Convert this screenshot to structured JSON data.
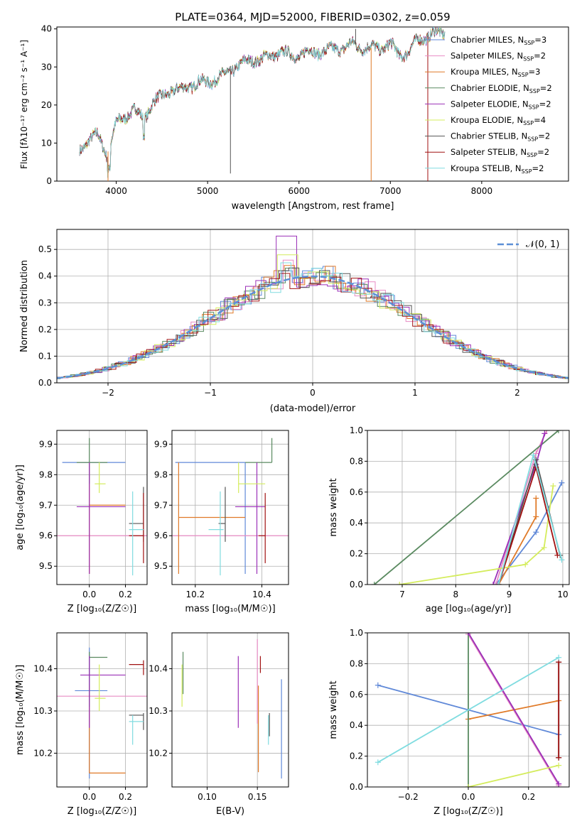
{
  "colors": {
    "chabrier_miles": "#6089d8",
    "salpeter_miles": "#e88bc4",
    "kroupa_miles": "#e07a28",
    "chabrier_elodie": "#5a8a60",
    "salpeter_elodie": "#9b30b8",
    "kroupa_elodie": "#d4ec5c",
    "chabrier_stelib": "#555555",
    "salpeter_stelib": "#a01010",
    "kroupa_stelib": "#80dce0",
    "gaussian": "#5b8fd6"
  },
  "chart_data": [
    {
      "id": "spectrum",
      "type": "line",
      "title": "PLATE=0364, MJD=52000, FIBERID=0302, z=0.059",
      "xlabel": "wavelength [Angstrom, rest frame]",
      "ylabel": "Flux [fλ10⁻¹⁷ erg cm⁻² s⁻¹ A⁻¹]",
      "xlim": [
        3350,
        8950
      ],
      "ylim": [
        0,
        40.5
      ],
      "xticks": [
        "4000",
        "5000",
        "6000",
        "7000",
        "8000"
      ],
      "yticks": [
        "0",
        "10",
        "20",
        "30",
        "40"
      ],
      "grid": false,
      "legend_position": "top-right",
      "x": [
        3600,
        3700,
        3800,
        3900,
        4000,
        4100,
        4200,
        4300,
        4400,
        4500,
        4600,
        4700,
        4800,
        4900,
        5000,
        5100,
        5200,
        5300,
        5400,
        5500,
        5600,
        5700,
        5800,
        5900,
        6000,
        6100,
        6200,
        6300,
        6400,
        6500,
        6600,
        6700,
        6800,
        6900,
        7000,
        7100,
        7200,
        7300,
        7400,
        7500
      ],
      "y": [
        8,
        11,
        12,
        7,
        15,
        17,
        19,
        16,
        21,
        22,
        24,
        24,
        25,
        26,
        26,
        27,
        28,
        30,
        31,
        32,
        32,
        33,
        34,
        33,
        33,
        34,
        34,
        34,
        35,
        35,
        36,
        35,
        35,
        35,
        36,
        33,
        34,
        37,
        38,
        39
      ],
      "series": [
        {
          "name": "Chabrier MILES, N_SSP=3",
          "color_key": "chabrier_miles"
        },
        {
          "name": "Salpeter MILES, N_SSP=2",
          "color_key": "salpeter_miles"
        },
        {
          "name": "Kroupa MILES, N_SSP=3",
          "color_key": "kroupa_miles"
        },
        {
          "name": "Chabrier ELODIE, N_SSP=2",
          "color_key": "chabrier_elodie"
        },
        {
          "name": "Salpeter ELODIE, N_SSP=2",
          "color_key": "salpeter_elodie"
        },
        {
          "name": "Kroupa ELODIE, N_SSP=4",
          "color_key": "kroupa_elodie"
        },
        {
          "name": "Chabrier STELIB, N_SSP=2",
          "color_key": "chabrier_stelib"
        },
        {
          "name": "Salpeter STELIB, N_SSP=2",
          "color_key": "salpeter_stelib"
        },
        {
          "name": "Kroupa STELIB, N_SSP=2",
          "color_key": "kroupa_stelib"
        }
      ]
    },
    {
      "id": "residuals",
      "type": "line",
      "xlabel": "(data-model)/error",
      "ylabel": "Normed distribution",
      "xlim": [
        -2.5,
        2.5
      ],
      "ylim": [
        0,
        0.575
      ],
      "xticks": [
        "−2",
        "−1",
        "0",
        "1",
        "2"
      ],
      "yticks": [
        "0.0",
        "0.1",
        "0.2",
        "0.3",
        "0.4",
        "0.5"
      ],
      "grid": true,
      "legend_position": "top-right",
      "legend_label": "𝒩(0, 1)",
      "series": [
        {
          "color_key": "chabrier_miles",
          "peak": 0.42
        },
        {
          "color_key": "salpeter_miles",
          "peak": 0.46
        },
        {
          "color_key": "kroupa_miles",
          "peak": 0.44
        },
        {
          "color_key": "chabrier_elodie",
          "peak": 0.43
        },
        {
          "color_key": "salpeter_elodie",
          "peak": 0.55
        },
        {
          "color_key": "kroupa_elodie",
          "peak": 0.48
        },
        {
          "color_key": "chabrier_stelib",
          "peak": 0.42
        },
        {
          "color_key": "salpeter_stelib",
          "peak": 0.41
        },
        {
          "color_key": "kroupa_stelib",
          "peak": 0.45
        }
      ]
    },
    {
      "id": "z_age",
      "type": "scatter",
      "xlabel": "Z [log₁₀(Z/Z☉)]",
      "ylabel": "age  [log₁₀(age/yr)]",
      "xlim": [
        -0.18,
        0.32
      ],
      "ylim": [
        9.44,
        9.945
      ],
      "xticks": [
        {
          "v": 0.0,
          "t": "0.0"
        },
        {
          "v": 0.2,
          "t": "0.2"
        }
      ],
      "yticks": [
        {
          "v": 9.5,
          "t": "9.5"
        },
        {
          "v": 9.6,
          "t": "9.6"
        },
        {
          "v": 9.7,
          "t": "9.7"
        },
        {
          "v": 9.8,
          "t": "9.8"
        },
        {
          "v": 9.9,
          "t": "9.9"
        }
      ],
      "grid": true,
      "points": [
        {
          "c": "chabrier_miles",
          "x": 0.09,
          "xl": -0.15,
          "xh": 0.2,
          "y": 9.84,
          "yl": 9.84,
          "yh": 9.84
        },
        {
          "c": "salpeter_miles",
          "x": 0.1,
          "xl": -0.18,
          "xh": 0.32,
          "y": 9.6,
          "yl": 9.6,
          "yh": 9.6
        },
        {
          "c": "kroupa_miles",
          "x": 0.0,
          "xl": 0.0,
          "xh": 0.2,
          "y": 9.7,
          "yl": 9.475,
          "yh": 9.84
        },
        {
          "c": "chabrier_elodie",
          "x": 0.0,
          "xl": -0.07,
          "xh": 0.1,
          "y": 9.84,
          "yl": 9.77,
          "yh": 9.92
        },
        {
          "c": "salpeter_elodie",
          "x": 0.0,
          "xl": -0.07,
          "xh": 0.2,
          "y": 9.695,
          "yl": 9.475,
          "yh": 9.84
        },
        {
          "c": "kroupa_elodie",
          "x": 0.055,
          "xl": 0.03,
          "xh": 0.09,
          "y": 9.77,
          "yl": 9.74,
          "yh": 9.84
        },
        {
          "c": "chabrier_stelib",
          "x": 0.3,
          "xl": 0.22,
          "xh": 0.3,
          "y": 9.64,
          "yl": 9.58,
          "yh": 9.76
        },
        {
          "c": "salpeter_stelib",
          "x": 0.3,
          "xl": 0.22,
          "xh": 0.3,
          "y": 9.6,
          "yl": 9.51,
          "yh": 9.74
        },
        {
          "c": "kroupa_stelib",
          "x": 0.24,
          "xl": 0.22,
          "xh": 0.3,
          "y": 9.62,
          "yl": 9.47,
          "yh": 9.745
        }
      ]
    },
    {
      "id": "mass_age",
      "type": "scatter",
      "xlabel": "mass [log₁₀(M/M☉)]",
      "xlim": [
        10.13,
        10.48
      ],
      "ylim": [
        9.44,
        9.945
      ],
      "xticks": [
        {
          "v": 10.2,
          "t": "10.2"
        },
        {
          "v": 10.4,
          "t": "10.4"
        }
      ],
      "yticks": [
        {
          "v": 9.5,
          "t": "9.5"
        },
        {
          "v": 9.6,
          "t": "9.6"
        },
        {
          "v": 9.7,
          "t": "9.7"
        },
        {
          "v": 9.8,
          "t": "9.8"
        },
        {
          "v": 9.9,
          "t": "9.9"
        }
      ],
      "grid": true,
      "points": [
        {
          "c": "chabrier_miles",
          "x": 10.35,
          "xl": 10.14,
          "xh": 10.35,
          "y": 9.84,
          "yl": 9.475,
          "yh": 9.84
        },
        {
          "c": "salpeter_miles",
          "x": 10.33,
          "xl": 10.13,
          "xh": 10.48,
          "y": 9.6,
          "yl": 9.6,
          "yh": 9.6
        },
        {
          "c": "kroupa_miles",
          "x": 10.15,
          "xl": 10.15,
          "xh": 10.35,
          "y": 9.66,
          "yl": 9.475,
          "yh": 9.84
        },
        {
          "c": "chabrier_elodie",
          "x": 10.43,
          "xl": 10.35,
          "xh": 10.43,
          "y": 9.84,
          "yl": 9.84,
          "yh": 9.92
        },
        {
          "c": "salpeter_elodie",
          "x": 10.385,
          "xl": 10.32,
          "xh": 10.41,
          "y": 9.695,
          "yl": 9.475,
          "yh": 9.84
        },
        {
          "c": "kroupa_elodie",
          "x": 10.33,
          "xl": 10.33,
          "xh": 10.41,
          "y": 9.77,
          "yl": 9.74,
          "yh": 9.84
        },
        {
          "c": "chabrier_stelib",
          "x": 10.29,
          "xl": 10.27,
          "xh": 10.29,
          "y": 9.64,
          "yl": 9.58,
          "yh": 9.76
        },
        {
          "c": "salpeter_stelib",
          "x": 10.41,
          "xl": 10.39,
          "xh": 10.41,
          "y": 9.6,
          "yl": 9.51,
          "yh": 9.74
        },
        {
          "c": "kroupa_stelib",
          "x": 10.275,
          "xl": 10.24,
          "xh": 10.285,
          "y": 9.62,
          "yl": 9.47,
          "yh": 9.745
        }
      ]
    },
    {
      "id": "age_weight",
      "type": "line",
      "xlabel": "age  [log₁₀(age/yr)]",
      "ylabel": "mass weight",
      "xlim": [
        6.35,
        10.12
      ],
      "ylim": [
        0,
        1
      ],
      "xticks": [
        {
          "v": 7,
          "t": "7"
        },
        {
          "v": 8,
          "t": "8"
        },
        {
          "v": 9,
          "t": "9"
        },
        {
          "v": 10,
          "t": "10"
        }
      ],
      "yticks": [
        {
          "v": 0,
          "t": "0.0"
        },
        {
          "v": 0.2,
          "t": "0.2"
        },
        {
          "v": 0.4,
          "t": "0.4"
        },
        {
          "v": 0.6,
          "t": "0.6"
        },
        {
          "v": 0.8,
          "t": "0.8"
        },
        {
          "v": 1.0,
          "t": "1.0"
        }
      ],
      "grid": true,
      "series": [
        {
          "c": "chabrier_miles",
          "x": [
            8.75,
            9.5,
            9.98
          ],
          "y": [
            0.0,
            0.34,
            0.66
          ]
        },
        {
          "c": "salpeter_miles",
          "x": [
            8.75,
            9.5,
            9.7
          ],
          "y": [
            0.0,
            0.85,
            1.0
          ]
        },
        {
          "c": "kroupa_miles",
          "x": [
            8.8,
            9.5,
            9.5
          ],
          "y": [
            0.0,
            0.44,
            0.56
          ]
        },
        {
          "c": "chabrier_elodie",
          "x": [
            6.48,
            9.92
          ],
          "y": [
            0.0,
            1.0
          ]
        },
        {
          "c": "salpeter_elodie",
          "x": [
            8.7,
            9.5,
            9.66
          ],
          "y": [
            0.0,
            0.78,
            0.98
          ]
        },
        {
          "c": "kroupa_elodie",
          "x": [
            6.95,
            9.3,
            9.65,
            9.82
          ],
          "y": [
            0.0,
            0.13,
            0.24,
            0.64
          ]
        },
        {
          "c": "chabrier_stelib",
          "x": [
            8.8,
            9.5,
            9.95
          ],
          "y": [
            0.0,
            0.81,
            0.19
          ]
        },
        {
          "c": "salpeter_stelib",
          "x": [
            8.8,
            9.5,
            9.9
          ],
          "y": [
            0.0,
            0.76,
            0.19
          ]
        },
        {
          "c": "kroupa_stelib",
          "x": [
            8.8,
            9.45,
            9.98
          ],
          "y": [
            0.0,
            0.84,
            0.16
          ]
        }
      ]
    },
    {
      "id": "z_mass",
      "type": "scatter",
      "xlabel": "Z [log₁₀(Z/Z☉)]",
      "ylabel": "mass [log₁₀(M/M☉)]",
      "xlim": [
        -0.18,
        0.32
      ],
      "ylim": [
        10.12,
        10.485
      ],
      "xticks": [
        {
          "v": 0.0,
          "t": "0.0"
        },
        {
          "v": 0.2,
          "t": "0.2"
        }
      ],
      "yticks": [
        {
          "v": 10.2,
          "t": "10.2"
        },
        {
          "v": 10.3,
          "t": "10.3"
        },
        {
          "v": 10.4,
          "t": "10.4"
        }
      ],
      "grid": true,
      "points": [
        {
          "c": "chabrier_miles",
          "x": 0.0,
          "xl": -0.08,
          "xh": 0.1,
          "y": 10.348,
          "yl": 10.14,
          "yh": 10.45
        },
        {
          "c": "salpeter_miles",
          "x": 0.05,
          "xl": -0.18,
          "xh": 0.32,
          "y": 10.335,
          "yl": 10.335,
          "yh": 10.335
        },
        {
          "c": "kroupa_miles",
          "x": 0.0,
          "xl": 0.0,
          "xh": 0.2,
          "y": 10.153,
          "yl": 10.153,
          "yh": 10.36
        },
        {
          "c": "chabrier_elodie",
          "x": 0.0,
          "xl": 0.0,
          "xh": 0.1,
          "y": 10.427,
          "yl": 10.31,
          "yh": 10.44
        },
        {
          "c": "salpeter_elodie",
          "x": 0.0,
          "xl": -0.05,
          "xh": 0.2,
          "y": 10.385,
          "yl": 10.26,
          "yh": 10.43
        },
        {
          "c": "kroupa_elodie",
          "x": 0.055,
          "xl": 0.03,
          "xh": 0.09,
          "y": 10.33,
          "yl": 10.3,
          "yh": 10.41
        },
        {
          "c": "chabrier_stelib",
          "x": 0.3,
          "xl": 0.22,
          "xh": 0.3,
          "y": 10.29,
          "yl": 10.255,
          "yh": 10.295
        },
        {
          "c": "salpeter_stelib",
          "x": 0.3,
          "xl": 0.22,
          "xh": 0.3,
          "y": 10.41,
          "yl": 10.385,
          "yh": 10.42
        },
        {
          "c": "kroupa_stelib",
          "x": 0.24,
          "xl": 0.22,
          "xh": 0.3,
          "y": 10.275,
          "yl": 10.22,
          "yh": 10.29
        }
      ]
    },
    {
      "id": "ebv_mass",
      "type": "scatter",
      "xlabel": "E(B-V)",
      "xlim": [
        0.065,
        0.181
      ],
      "ylim": [
        10.12,
        10.485
      ],
      "xticks": [
        {
          "v": 0.1,
          "t": "0.10"
        },
        {
          "v": 0.15,
          "t": "0.15"
        }
      ],
      "yticks": [
        {
          "v": 10.2,
          "t": "10.2"
        },
        {
          "v": 10.3,
          "t": "10.3"
        },
        {
          "v": 10.4,
          "t": "10.4"
        }
      ],
      "grid": true,
      "points": [
        {
          "c": "chabrier_miles",
          "x": 0.174,
          "xl": 0.174,
          "xh": 0.174,
          "y": 10.26,
          "yl": 10.14,
          "yh": 10.375
        },
        {
          "c": "salpeter_miles",
          "x": 0.15,
          "xl": 0.15,
          "xh": 0.15,
          "y": 10.36,
          "yl": 10.27,
          "yh": 10.47
        },
        {
          "c": "kroupa_miles",
          "x": 0.151,
          "xl": 0.151,
          "xh": 0.151,
          "y": 10.25,
          "yl": 10.155,
          "yh": 10.36
        },
        {
          "c": "chabrier_elodie",
          "x": 0.076,
          "xl": 0.076,
          "xh": 0.076,
          "y": 10.4,
          "yl": 10.34,
          "yh": 10.44
        },
        {
          "c": "salpeter_elodie",
          "x": 0.131,
          "xl": 0.131,
          "xh": 0.131,
          "y": 10.34,
          "yl": 10.26,
          "yh": 10.43
        },
        {
          "c": "kroupa_elodie",
          "x": 0.075,
          "xl": 0.075,
          "xh": 0.075,
          "y": 10.36,
          "yl": 10.31,
          "yh": 10.41
        },
        {
          "c": "chabrier_stelib",
          "x": 0.162,
          "xl": 0.162,
          "xh": 0.162,
          "y": 10.28,
          "yl": 10.24,
          "yh": 10.295
        },
        {
          "c": "salpeter_stelib",
          "x": 0.153,
          "xl": 0.153,
          "xh": 0.153,
          "y": 10.41,
          "yl": 10.39,
          "yh": 10.43
        },
        {
          "c": "kroupa_stelib",
          "x": 0.161,
          "xl": 0.161,
          "xh": 0.161,
          "y": 10.27,
          "yl": 10.22,
          "yh": 10.29
        }
      ]
    },
    {
      "id": "z_weight",
      "type": "line",
      "xlabel": "Z [log₁₀(Z/Z☉)]",
      "ylabel": "mass weight",
      "xlim": [
        -0.335,
        0.335
      ],
      "ylim": [
        0,
        1
      ],
      "xticks": [
        {
          "v": -0.2,
          "t": "−0.2"
        },
        {
          "v": 0.0,
          "t": "0.0"
        },
        {
          "v": 0.2,
          "t": "0.2"
        }
      ],
      "yticks": [
        {
          "v": 0,
          "t": "0.0"
        },
        {
          "v": 0.2,
          "t": "0.2"
        },
        {
          "v": 0.4,
          "t": "0.4"
        },
        {
          "v": 0.6,
          "t": "0.6"
        },
        {
          "v": 0.8,
          "t": "0.8"
        },
        {
          "v": 1.0,
          "t": "1.0"
        }
      ],
      "grid": true,
      "series": [
        {
          "c": "chabrier_miles",
          "x": [
            -0.3,
            0.3
          ],
          "y": [
            0.66,
            0.34
          ]
        },
        {
          "c": "salpeter_miles",
          "x": [
            0.0,
            0.3
          ],
          "y": [
            0.99,
            0.01
          ]
        },
        {
          "c": "kroupa_miles",
          "x": [
            0.0,
            0.3
          ],
          "y": [
            0.44,
            0.56
          ]
        },
        {
          "c": "chabrier_elodie",
          "x": [
            0.0,
            0.0
          ],
          "y": [
            0.0,
            1.0
          ]
        },
        {
          "c": "salpeter_elodie",
          "x": [
            0.0,
            0.3
          ],
          "y": [
            1.0,
            0.02
          ]
        },
        {
          "c": "kroupa_elodie",
          "x": [
            0.0,
            0.3
          ],
          "y": [
            0.0,
            0.14
          ]
        },
        {
          "c": "chabrier_stelib",
          "x": [
            0.3,
            0.3
          ],
          "y": [
            0.19,
            0.81
          ]
        },
        {
          "c": "salpeter_stelib",
          "x": [
            0.3,
            0.3
          ],
          "y": [
            0.19,
            0.81
          ]
        },
        {
          "c": "kroupa_stelib",
          "x": [
            -0.3,
            0.3
          ],
          "y": [
            0.16,
            0.84
          ]
        }
      ]
    }
  ]
}
